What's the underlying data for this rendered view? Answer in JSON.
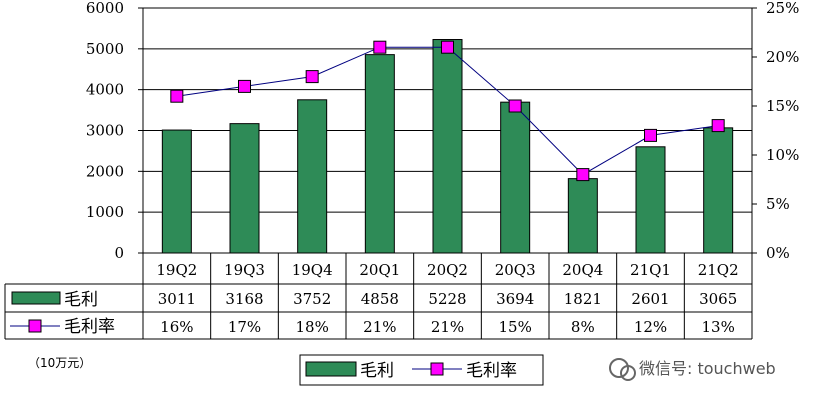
{
  "chart_data": {
    "type": "bar+line",
    "categories": [
      "19Q2",
      "19Q3",
      "19Q4",
      "20Q1",
      "20Q2",
      "20Q3",
      "20Q4",
      "21Q1",
      "21Q2"
    ],
    "series": [
      {
        "name": "毛利",
        "type": "bar",
        "axis": "left",
        "values": [
          3011,
          3168,
          3752,
          4858,
          5228,
          3694,
          1821,
          2601,
          3065
        ],
        "color": "#2e8b57"
      },
      {
        "name": "毛利率",
        "type": "line",
        "axis": "right",
        "values": [
          16,
          17,
          18,
          21,
          21,
          15,
          8,
          12,
          13
        ],
        "labels": [
          "16%",
          "17%",
          "18%",
          "21%",
          "21%",
          "15%",
          "8%",
          "12%",
          "13%"
        ],
        "color": "#ff00ff",
        "line_color": "#000080"
      }
    ],
    "y_left": {
      "range": [
        0,
        6000
      ],
      "ticks": [
        "0",
        "1000",
        "2000",
        "3000",
        "4000",
        "5000",
        "6000"
      ]
    },
    "y_right": {
      "range": [
        0,
        25
      ],
      "ticks": [
        "0%",
        "5%",
        "10%",
        "15%",
        "20%",
        "25%"
      ]
    },
    "grid": true,
    "legend": "bottom",
    "unit_note": "（10万元）"
  },
  "watermark": "微信号: touchweb"
}
